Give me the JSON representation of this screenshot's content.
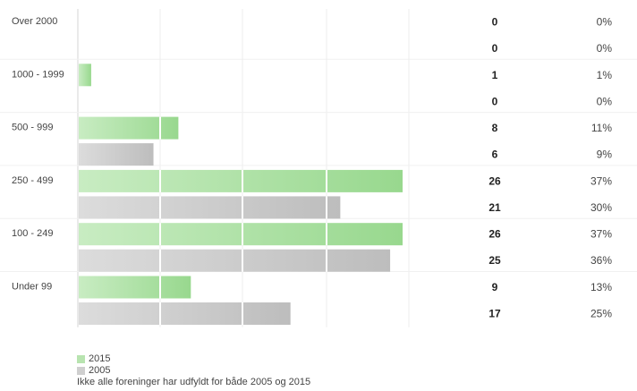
{
  "chart_data": {
    "type": "bar",
    "orientation": "horizontal",
    "categories": [
      "Over 2000",
      "1000 - 1999",
      "500 - 999",
      "250 - 499",
      "100 - 249",
      "Under 99"
    ],
    "series": [
      {
        "name": "2015",
        "color": "#a8e0a0",
        "values": [
          0,
          1,
          8,
          26,
          26,
          9
        ],
        "percent_labels": [
          "0%",
          "1%",
          "11%",
          "37%",
          "37%",
          "13%"
        ]
      },
      {
        "name": "2005",
        "color": "#c8c8c8",
        "values": [
          0,
          0,
          6,
          21,
          25,
          17
        ],
        "percent_labels": [
          "0%",
          "0%",
          "9%",
          "30%",
          "36%",
          "25%"
        ]
      }
    ],
    "xlim": [
      0,
      26
    ],
    "grid": true,
    "legend_position": "bottom-left"
  },
  "legend": {
    "items": [
      {
        "label": "2015",
        "color": "#b8e4b0"
      },
      {
        "label": "2005",
        "color": "#cfcfcf"
      }
    ],
    "note": "Ikke alle foreninger har udfyldt for både 2005 og 2015"
  }
}
